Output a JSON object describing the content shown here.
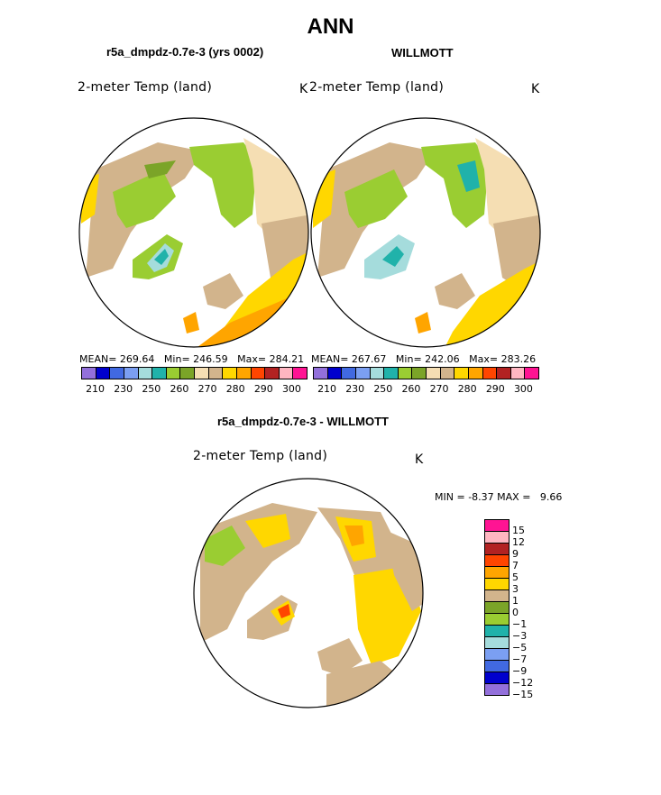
{
  "figure": {
    "title": "ANN",
    "panel1_title": "r5a_dmpdz-0.7e-3 (yrs 0002)",
    "panel2_title": "WILLMOTT",
    "panel3_title": "r5a_dmpdz-0.7e-3 - WILLMOTT"
  },
  "chart_data": [
    {
      "type": "heatmap",
      "projection": "north-polar-stereographic",
      "title": "r5a_dmpdz-0.7e-3 (yrs 0002)",
      "variable": "2-meter Temp (land)",
      "units": "K",
      "stats": {
        "mean_label": "MEAN=",
        "mean": "269.64",
        "min_label": "Min=",
        "min": "246.59",
        "max_label": "Max=",
        "max": "284.21"
      },
      "colorbar_ticks": [
        "210",
        "230",
        "250",
        "260",
        "270",
        "280",
        "290",
        "300"
      ],
      "colors": [
        "#9370db",
        "#0000cd",
        "#4169e1",
        "#7b9ff2",
        "#a5dcdc",
        "#20b2aa",
        "#9acd32",
        "#7ba428",
        "#f5deb3",
        "#d2b48c",
        "#ffd700",
        "#ffa500",
        "#ff4500",
        "#b22222",
        "#ffb6c1",
        "#ff1493"
      ]
    },
    {
      "type": "heatmap",
      "projection": "north-polar-stereographic",
      "title": "WILLMOTT",
      "variable": "2-meter Temp (land)",
      "units": "K",
      "stats": {
        "mean_label": "MEAN=",
        "mean": "267.67",
        "min_label": "Min=",
        "min": "242.06",
        "max_label": "Max=",
        "max": "283.26"
      },
      "colorbar_ticks": [
        "210",
        "230",
        "250",
        "260",
        "270",
        "280",
        "290",
        "300"
      ],
      "colors": [
        "#9370db",
        "#0000cd",
        "#4169e1",
        "#7b9ff2",
        "#a5dcdc",
        "#20b2aa",
        "#9acd32",
        "#7ba428",
        "#f5deb3",
        "#d2b48c",
        "#ffd700",
        "#ffa500",
        "#ff4500",
        "#b22222",
        "#ffb6c1",
        "#ff1493"
      ]
    },
    {
      "type": "heatmap",
      "projection": "north-polar-stereographic",
      "title": "r5a_dmpdz-0.7e-3 - WILLMOTT",
      "variable": "2-meter Temp (land)",
      "units": "K",
      "stats": {
        "min_label": "MIN =",
        "min": "-8.37",
        "max_label": "MAX =",
        "max": "9.66"
      },
      "colorbar_levels": [
        "15",
        "12",
        "9",
        "7",
        "5",
        "3",
        "1",
        "0",
        "−1",
        "−3",
        "−5",
        "−7",
        "−9",
        "−12",
        "−15"
      ],
      "colors": [
        "#ff1493",
        "#ffb6c1",
        "#b22222",
        "#ff4500",
        "#ffa500",
        "#ffd700",
        "#d2b48c",
        "#7ba428",
        "#9acd32",
        "#20b2aa",
        "#a5dcdc",
        "#7b9ff2",
        "#4169e1",
        "#0000cd",
        "#9370db"
      ]
    }
  ]
}
